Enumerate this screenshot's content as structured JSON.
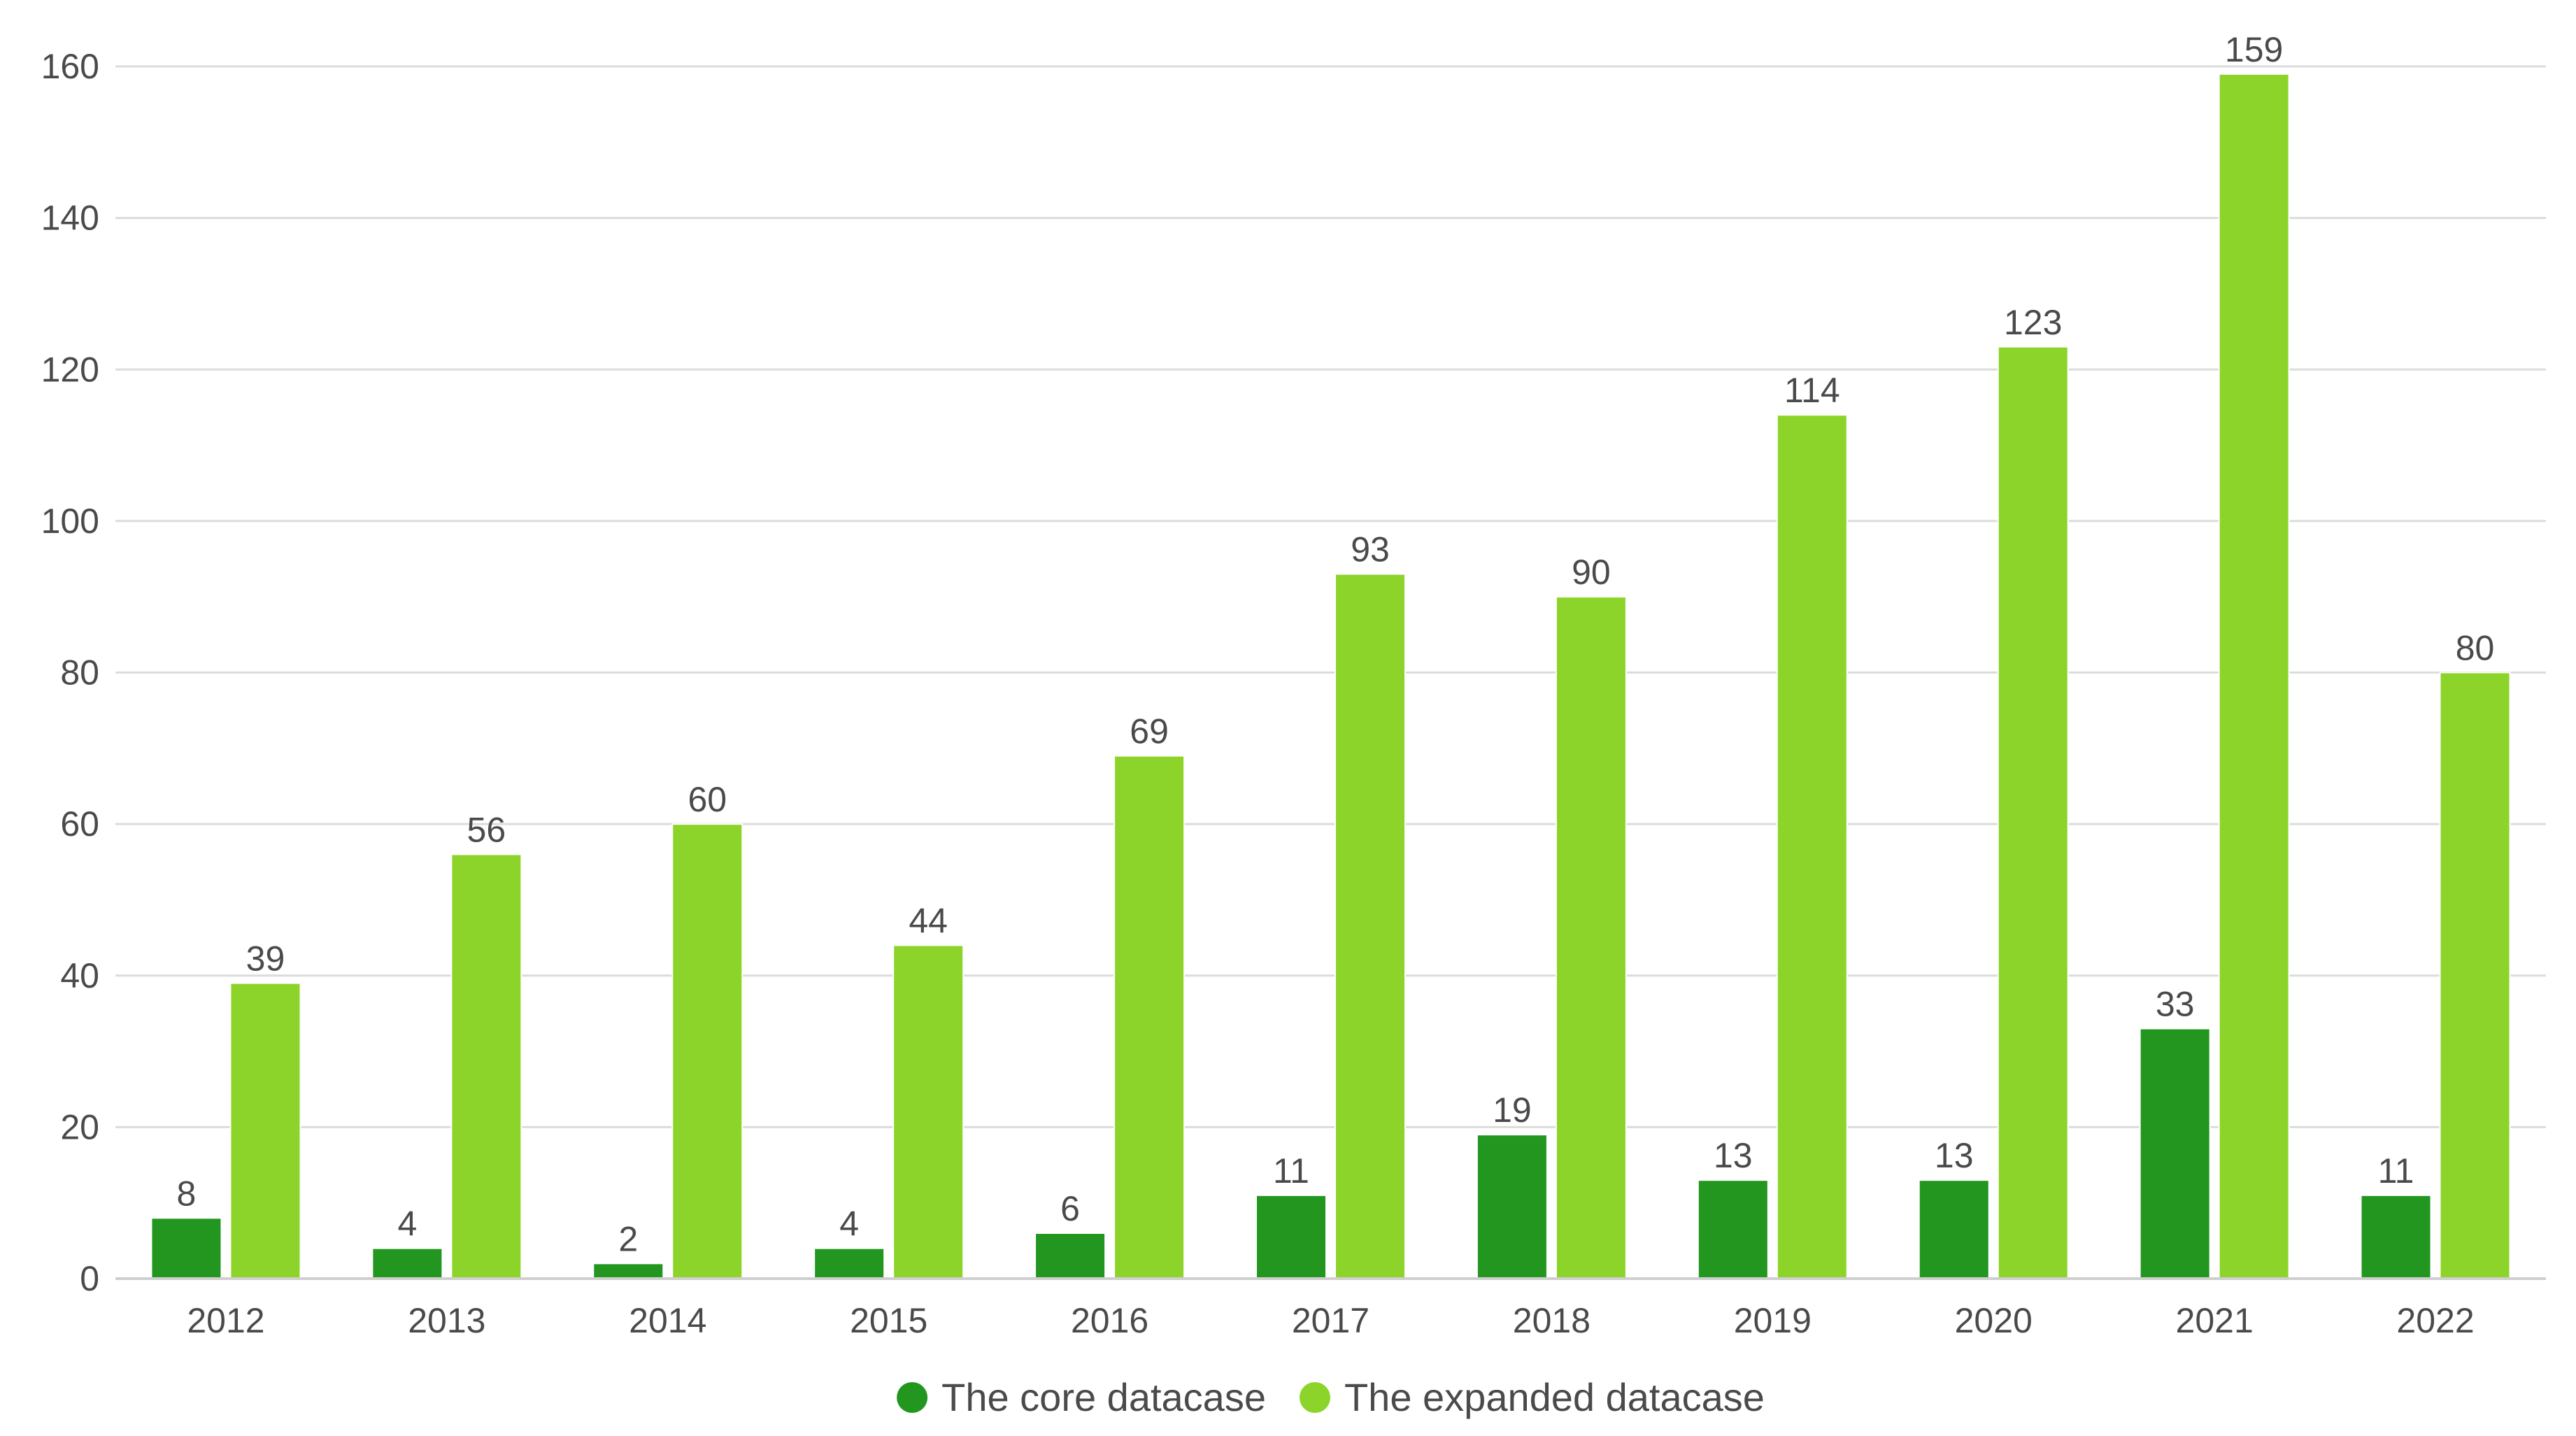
{
  "chart_data": {
    "type": "bar",
    "categories": [
      "2012",
      "2013",
      "2014",
      "2015",
      "2016",
      "2017",
      "2018",
      "2019",
      "2020",
      "2021",
      "2022"
    ],
    "series": [
      {
        "name": "The core datacase",
        "color": "#22961f",
        "values": [
          8,
          4,
          2,
          4,
          6,
          11,
          19,
          13,
          13,
          33,
          11
        ]
      },
      {
        "name": "The expanded datacase",
        "color": "#8cd42a",
        "values": [
          39,
          56,
          60,
          44,
          69,
          93,
          90,
          114,
          123,
          159,
          80
        ]
      }
    ],
    "title": "",
    "xlabel": "",
    "ylabel": "",
    "ylim": [
      0,
      160
    ],
    "yticks": [
      "0",
      "20",
      "40",
      "60",
      "80",
      "100",
      "120",
      "140",
      "160"
    ],
    "grid": true,
    "legend_position": "bottom-center",
    "data_labels": true
  }
}
